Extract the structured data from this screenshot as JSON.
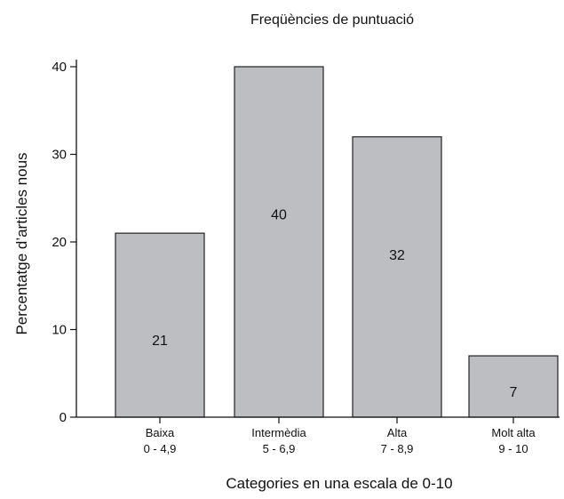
{
  "chart_data": {
    "type": "bar",
    "title": "Freqüències de puntuació",
    "xlabel": "Categories en una escala de 0-10",
    "ylabel": "Percentatge d’articles nous",
    "ylim": [
      0,
      40
    ],
    "yticks": [
      0,
      10,
      20,
      30,
      40
    ],
    "grid": false,
    "categories": [
      {
        "name": "Baixa",
        "range": "0 - 4,9"
      },
      {
        "name": "Intermèdia",
        "range": "5 - 6,9"
      },
      {
        "name": "Alta",
        "range": "7 - 8,9"
      },
      {
        "name": "Molt alta",
        "range": "9 - 10"
      }
    ],
    "values": [
      21,
      40,
      32,
      7
    ],
    "bar_labels": [
      "21",
      "40",
      "32",
      "7"
    ],
    "colors": {
      "bar_fill": "#bdbec2",
      "bar_stroke": "#222222",
      "axis": "#111111"
    }
  }
}
